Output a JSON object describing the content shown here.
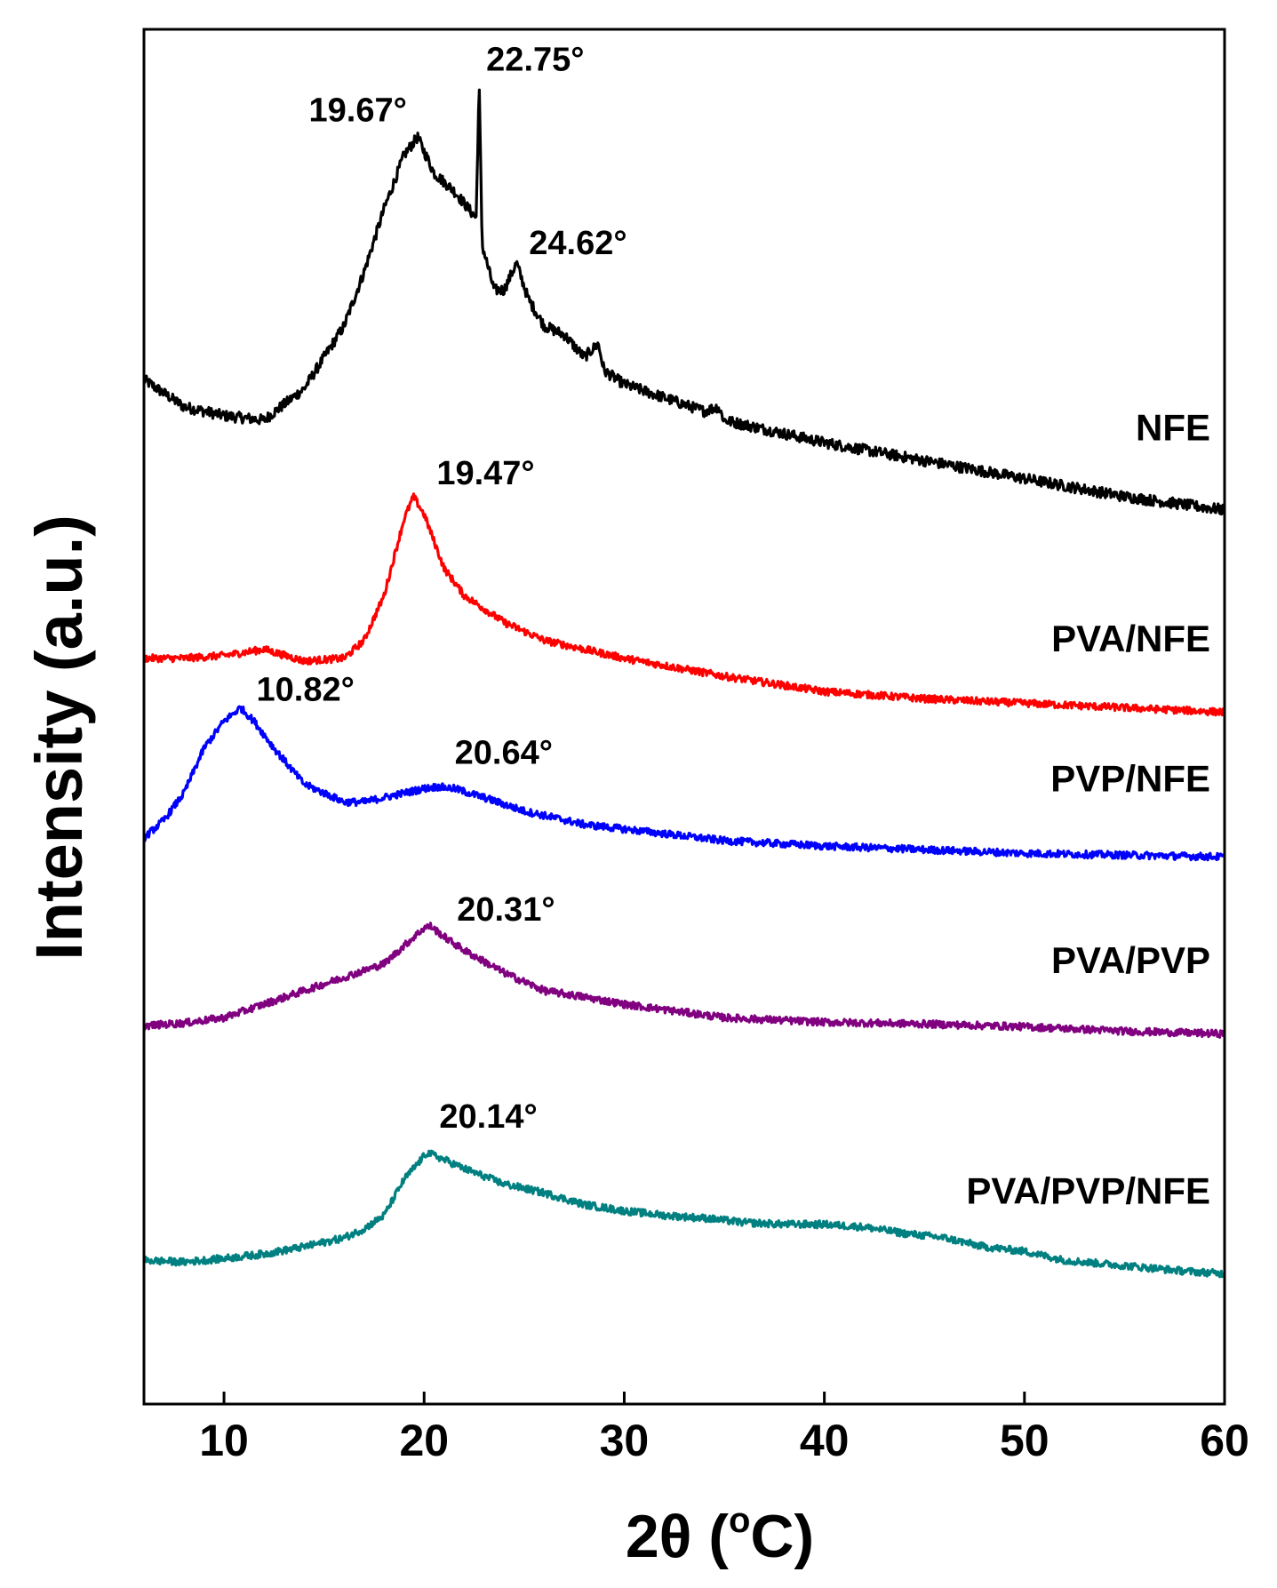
{
  "chart_data": {
    "type": "line",
    "title": "",
    "xlabel": "2θ (°C)",
    "xlabel_main": "2θ (",
    "xlabel_degree": "o",
    "xlabel_unit": "C)",
    "ylabel": "Intensity (a.u.)",
    "xlim": [
      6,
      60
    ],
    "xticks": [
      10,
      20,
      30,
      40,
      50,
      60
    ],
    "xtick_labels": [
      "10",
      "20",
      "30",
      "40",
      "50",
      "60"
    ],
    "yticks": "none",
    "legend": "inline labels at right end of each curve",
    "colors": {
      "NFE": "#000000",
      "PVA/NFE": "#ff0000",
      "PVP/NFE": "#0000ff",
      "PVA/PVP": "#800080",
      "PVA/PVP/NFE": "#008080"
    },
    "series": [
      {
        "name": "NFE",
        "label": "NFE",
        "color": "#000000",
        "x": [
          6,
          8,
          10,
          12,
          14,
          16,
          17,
          18,
          19,
          19.67,
          20.5,
          21.5,
          22.6,
          22.75,
          22.9,
          23.5,
          24,
          24.62,
          25.2,
          26,
          27,
          28,
          28.7,
          29,
          30,
          32,
          34,
          34.7,
          35,
          36,
          40,
          45,
          50,
          55,
          60
        ],
        "y": [
          0.81,
          0.78,
          0.77,
          0.765,
          0.8,
          0.87,
          0.93,
          1.0,
          1.06,
          1.08,
          1.04,
          1.02,
          0.99,
          1.14,
          0.96,
          0.91,
          0.91,
          0.94,
          0.9,
          0.87,
          0.86,
          0.835,
          0.85,
          0.82,
          0.805,
          0.79,
          0.775,
          0.78,
          0.765,
          0.76,
          0.74,
          0.72,
          0.7,
          0.68,
          0.665
        ]
      },
      {
        "name": "PVA/NFE",
        "label": "PVA/NFE",
        "color": "#ff0000",
        "x": [
          6,
          8,
          10,
          12,
          14,
          16,
          17,
          18,
          19,
          19.47,
          20,
          21,
          22,
          24,
          26,
          28,
          30,
          35,
          40,
          45,
          50,
          55,
          60
        ],
        "y": [
          0.5,
          0.5,
          0.503,
          0.51,
          0.497,
          0.5,
          0.52,
          0.57,
          0.655,
          0.68,
          0.66,
          0.6,
          0.57,
          0.54,
          0.52,
          0.51,
          0.5,
          0.48,
          0.463,
          0.455,
          0.45,
          0.445,
          0.44
        ]
      },
      {
        "name": "PVP/NFE",
        "label": "PVP/NFE",
        "color": "#0000ff",
        "x": [
          6,
          7,
          8,
          9,
          10,
          10.82,
          11.5,
          12.5,
          14,
          16,
          17,
          18,
          20,
          20.64,
          21.5,
          23,
          25,
          28,
          30,
          35,
          40,
          45,
          50,
          55,
          60
        ],
        "y": [
          0.3,
          0.32,
          0.35,
          0.4,
          0.43,
          0.445,
          0.43,
          0.4,
          0.36,
          0.34,
          0.34,
          0.345,
          0.355,
          0.357,
          0.355,
          0.345,
          0.33,
          0.315,
          0.31,
          0.297,
          0.291,
          0.287,
          0.283,
          0.281,
          0.279
        ]
      },
      {
        "name": "PVA/PVP",
        "label": "PVA/PVP",
        "color": "#800080",
        "x": [
          6,
          8,
          10,
          12,
          14,
          16,
          18,
          19,
          20,
          20.31,
          21,
          22,
          24,
          26,
          28,
          30,
          35,
          40,
          45,
          50,
          55,
          60
        ],
        "y": [
          0.091,
          0.094,
          0.1,
          0.115,
          0.13,
          0.145,
          0.16,
          0.18,
          0.2,
          0.202,
          0.19,
          0.175,
          0.15,
          0.13,
          0.123,
          0.115,
          0.1,
          0.095,
          0.093,
          0.09,
          0.085,
          0.082
        ]
      },
      {
        "name": "PVA/PVP/NFE",
        "label": "PVA/PVP/NFE",
        "color": "#008080",
        "x": [
          6,
          8,
          10,
          12,
          14,
          16,
          17,
          18,
          19,
          20,
          20.14,
          21,
          22,
          24,
          26,
          28,
          30,
          32,
          34,
          36,
          38,
          40,
          42,
          44,
          46,
          48,
          50,
          52,
          55,
          58,
          60
        ],
        "y": [
          -0.17,
          -0.172,
          -0.168,
          -0.163,
          -0.155,
          -0.145,
          -0.135,
          -0.12,
          -0.08,
          -0.054,
          -0.05,
          -0.058,
          -0.068,
          -0.085,
          -0.095,
          -0.108,
          -0.115,
          -0.12,
          -0.123,
          -0.128,
          -0.13,
          -0.13,
          -0.133,
          -0.14,
          -0.145,
          -0.155,
          -0.16,
          -0.17,
          -0.176,
          -0.182,
          -0.185
        ]
      }
    ],
    "annotations": [
      {
        "text": "19.67°",
        "series": "NFE",
        "x": 19.67
      },
      {
        "text": "22.75°",
        "series": "NFE",
        "x": 22.75
      },
      {
        "text": "24.62°",
        "series": "NFE",
        "x": 24.62
      },
      {
        "text": "19.47°",
        "series": "PVA/NFE",
        "x": 19.47
      },
      {
        "text": "10.82°",
        "series": "PVP/NFE",
        "x": 10.82
      },
      {
        "text": "20.64°",
        "series": "PVP/NFE",
        "x": 20.64
      },
      {
        "text": "20.31°",
        "series": "PVA/PVP",
        "x": 20.31
      },
      {
        "text": "20.14°",
        "series": "PVA/PVP/NFE",
        "x": 20.14
      }
    ]
  }
}
